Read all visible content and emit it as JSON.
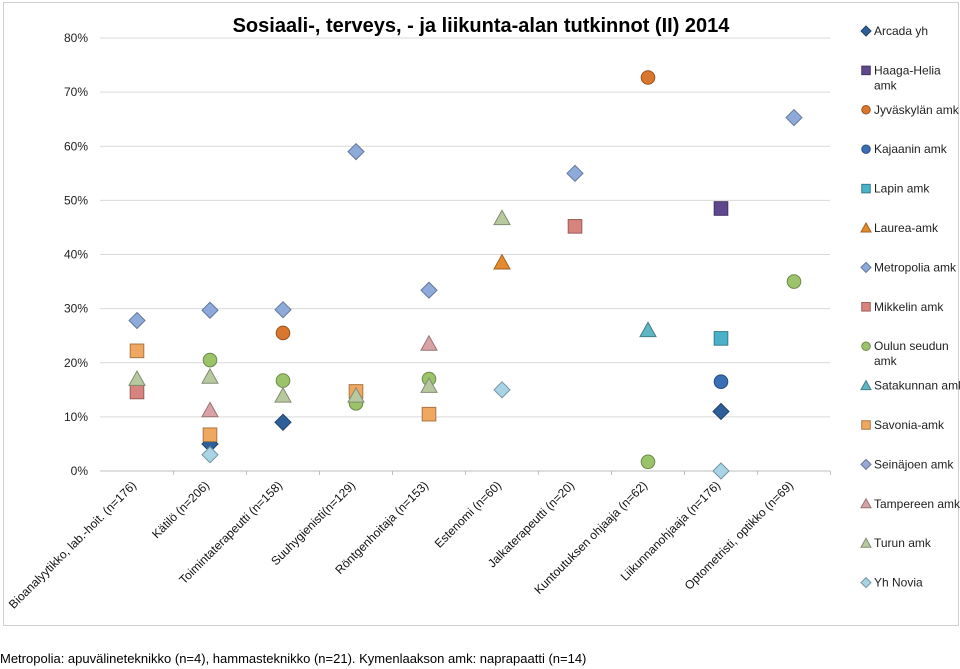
{
  "chart_data": {
    "type": "scatter",
    "title": "Sosiaali-, terveys, - ja liikunta-alan tutkinnot (II) 2014",
    "ylim": [
      0,
      80
    ],
    "y_ticks": [
      "0%",
      "10%",
      "20%",
      "30%",
      "40%",
      "50%",
      "60%",
      "70%",
      "80%"
    ],
    "grid": true,
    "legend_position": "right",
    "categories": [
      "Bioanalyytikko, lab.-hoit. (n=176)",
      "Kätilö (n=206)",
      "Toimintaterapeutti (n=158)",
      "Suuhygienisti(n=129)",
      "Röntgenhoitaja (n=153)",
      "Estenomi (n=60)",
      "Jalkaterapeutti (n=20)",
      "Kuntoutuksen ohjaaja (n=62)",
      "Liikunnanohjaaja (n=176)",
      "Optometristi, optikko (n=69)"
    ],
    "series": [
      {
        "name": "Arcada yh",
        "marker": "diamond",
        "color": "#2f5f98",
        "points": [
          [
            1,
            5
          ],
          [
            2,
            9
          ],
          [
            8,
            11
          ]
        ]
      },
      {
        "name": "Haaga-Helia amk",
        "marker": "square",
        "color": "#60488f",
        "points": [
          [
            8,
            48.5
          ]
        ]
      },
      {
        "name": "Jyväskylän amk",
        "marker": "circle",
        "color": "#d9772e",
        "points": [
          [
            2,
            25.5
          ],
          [
            7,
            72.7
          ]
        ]
      },
      {
        "name": "Kajaanin amk",
        "marker": "circle",
        "color": "#3a6fb5",
        "points": [
          [
            8,
            16.5
          ]
        ]
      },
      {
        "name": "Lapin amk",
        "marker": "square",
        "color": "#4bb1c9",
        "points": [
          [
            8,
            24.5
          ]
        ]
      },
      {
        "name": "Laurea-amk",
        "marker": "triangle",
        "color": "#e68a2e",
        "points": [
          [
            5,
            38.5
          ]
        ]
      },
      {
        "name": "Metropolia amk",
        "marker": "diamond",
        "color": "#8eaadb",
        "points": [
          [
            0,
            27.8
          ],
          [
            1,
            29.7
          ],
          [
            2,
            29.8
          ],
          [
            3,
            59
          ],
          [
            4,
            33.4
          ],
          [
            6,
            55
          ],
          [
            9,
            65.3
          ]
        ]
      },
      {
        "name": "Mikkelin amk",
        "marker": "square",
        "color": "#d9837f",
        "points": [
          [
            0,
            14.6
          ],
          [
            6,
            45.2
          ]
        ]
      },
      {
        "name": "Oulun seudun amk",
        "marker": "circle",
        "color": "#9bc36a",
        "points": [
          [
            1,
            20.5
          ],
          [
            2,
            16.7
          ],
          [
            3,
            12.5
          ],
          [
            4,
            17
          ],
          [
            7,
            1.7
          ],
          [
            9,
            35
          ]
        ]
      },
      {
        "name": "Satakunnan amk",
        "marker": "triangle",
        "color": "#5fb5c3",
        "points": [
          [
            7,
            26
          ]
        ]
      },
      {
        "name": "Savonia-amk",
        "marker": "square",
        "color": "#f0a860",
        "points": [
          [
            0,
            22.2
          ],
          [
            1,
            6.7
          ],
          [
            3,
            14.7
          ],
          [
            4,
            10.5
          ]
        ]
      },
      {
        "name": "Seinäjoen amk",
        "marker": "diamond",
        "color": "#9aa8d8",
        "points": []
      },
      {
        "name": "Tampereen amk",
        "marker": "triangle",
        "color": "#d9a3a5",
        "points": [
          [
            1,
            11.2
          ],
          [
            4,
            23.5
          ]
        ]
      },
      {
        "name": "Turun amk",
        "marker": "triangle",
        "color": "#b8c9a0",
        "points": [
          [
            0,
            17
          ],
          [
            1,
            17.4
          ],
          [
            2,
            13.9
          ],
          [
            3,
            13.9
          ],
          [
            4,
            15.7
          ],
          [
            5,
            46.7
          ]
        ]
      },
      {
        "name": "Yh Novia",
        "marker": "diamond",
        "color": "#a9d4e6",
        "points": [
          [
            1,
            3
          ],
          [
            5,
            15
          ],
          [
            8,
            0
          ]
        ]
      }
    ]
  },
  "footnote": "Metropolia: apuvälineteknikko (n=4), hammasteknikko (n=21). Kymenlaakson amk: naprapaatti (n=14)"
}
